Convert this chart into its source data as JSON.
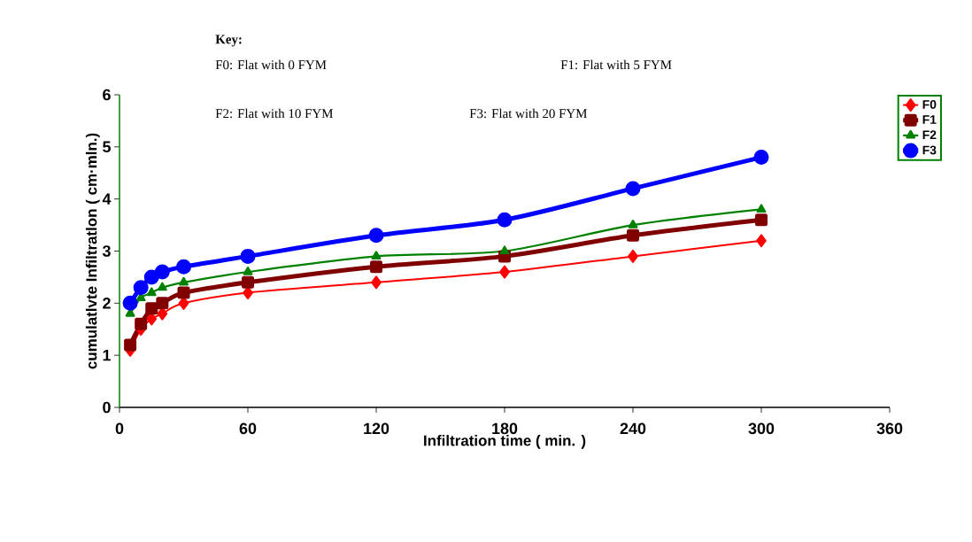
{
  "chart_data": {
    "type": "line",
    "xlabel": "Infiltration time ( min. )",
    "ylabel": "cumulatlvte Infiltratlon  ( cm·mln.)",
    "annotations": [
      "**Key:**",
      "F0: Flat with 0 FYM",
      "F1: Flat with 5 FYM",
      "F2: Flat with 10 FYM",
      "F3: Flat with 20 FYM"
    ],
    "x": [
      5,
      10,
      15,
      20,
      30,
      60,
      120,
      180,
      240,
      300
    ],
    "series": [
      {
        "name": "F0",
        "color": "#ff0000",
        "marker": "diamond",
        "values": [
          1.1,
          1.5,
          1.7,
          1.8,
          2.0,
          2.2,
          2.4,
          2.6,
          2.9,
          3.2
        ]
      },
      {
        "name": "F1",
        "color": "#800000",
        "marker": "square",
        "values": [
          1.2,
          1.6,
          1.9,
          2.0,
          2.2,
          2.4,
          2.7,
          2.9,
          3.3,
          3.6
        ]
      },
      {
        "name": "F2",
        "color": "#008000",
        "marker": "triangle",
        "values": [
          1.8,
          2.1,
          2.2,
          2.3,
          2.4,
          2.6,
          2.9,
          3.0,
          3.5,
          3.8
        ]
      },
      {
        "name": "F3",
        "color": "#0000ff",
        "marker": "circle",
        "values": [
          2.0,
          2.3,
          2.5,
          2.6,
          2.7,
          2.9,
          3.3,
          3.6,
          4.2,
          4.8
        ]
      }
    ],
    "xlim": [
      0,
      360
    ],
    "xticks": [
      0,
      60,
      120,
      180,
      240,
      300,
      360
    ],
    "ylim": [
      0,
      6
    ],
    "yticks": [
      0,
      1,
      2,
      3,
      4,
      5,
      6
    ],
    "legend": "right",
    "grid": false,
    "line_style": "solid"
  }
}
